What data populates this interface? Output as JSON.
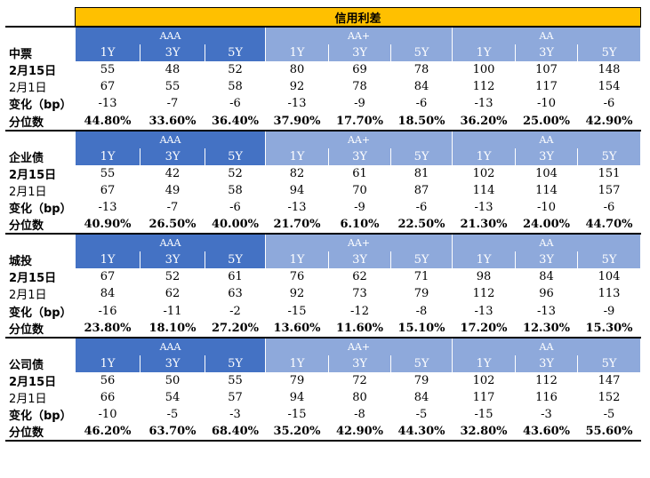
{
  "title": "信用利差",
  "ratings": [
    "AAA",
    "AA+",
    "AA"
  ],
  "tenors": [
    "1Y",
    "3Y",
    "5Y"
  ],
  "sections": [
    {
      "category": "中票",
      "rows": [
        {
          "label": "2月15日",
          "bold": true,
          "values": [
            "55",
            "48",
            "52",
            "80",
            "69",
            "78",
            "100",
            "107",
            "148"
          ]
        },
        {
          "label": "2月1日",
          "bold": false,
          "values": [
            "67",
            "55",
            "58",
            "92",
            "78",
            "84",
            "112",
            "117",
            "154"
          ]
        },
        {
          "label": "变化（bp）",
          "bold": true,
          "values": [
            "-13",
            "-7",
            "-6",
            "-13",
            "-9",
            "-6",
            "-13",
            "-10",
            "-6"
          ]
        },
        {
          "label": "分位数",
          "bold": true,
          "values": [
            "44.80%",
            "33.60%",
            "36.40%",
            "37.90%",
            "17.70%",
            "18.50%",
            "36.20%",
            "25.00%",
            "42.90%"
          ]
        }
      ]
    },
    {
      "category": "企业债",
      "rows": [
        {
          "label": "2月15日",
          "bold": true,
          "values": [
            "55",
            "42",
            "52",
            "82",
            "61",
            "81",
            "102",
            "104",
            "151"
          ]
        },
        {
          "label": "2月1日",
          "bold": false,
          "values": [
            "67",
            "49",
            "58",
            "94",
            "70",
            "87",
            "114",
            "114",
            "157"
          ]
        },
        {
          "label": "变化（bp）",
          "bold": true,
          "values": [
            "-13",
            "-7",
            "-6",
            "-13",
            "-9",
            "-6",
            "-13",
            "-10",
            "-6"
          ]
        },
        {
          "label": "分位数",
          "bold": true,
          "values": [
            "40.90%",
            "26.50%",
            "40.00%",
            "21.70%",
            "6.10%",
            "22.50%",
            "21.30%",
            "24.00%",
            "44.70%"
          ]
        }
      ]
    },
    {
      "category": "城投",
      "rows": [
        {
          "label": "2月15日",
          "bold": true,
          "values": [
            "67",
            "52",
            "61",
            "76",
            "62",
            "71",
            "98",
            "84",
            "104"
          ]
        },
        {
          "label": "2月1日",
          "bold": false,
          "values": [
            "84",
            "62",
            "63",
            "92",
            "73",
            "79",
            "112",
            "96",
            "113"
          ]
        },
        {
          "label": "变化（bp）",
          "bold": true,
          "values": [
            "-16",
            "-11",
            "-2",
            "-15",
            "-12",
            "-8",
            "-13",
            "-13",
            "-9"
          ]
        },
        {
          "label": "分位数",
          "bold": true,
          "values": [
            "23.80%",
            "18.10%",
            "27.20%",
            "13.60%",
            "11.60%",
            "15.10%",
            "17.20%",
            "12.30%",
            "15.30%"
          ]
        }
      ]
    },
    {
      "category": "公司债",
      "rows": [
        {
          "label": "2月15日",
          "bold": true,
          "values": [
            "56",
            "50",
            "55",
            "79",
            "72",
            "79",
            "102",
            "112",
            "147"
          ]
        },
        {
          "label": "2月1日",
          "bold": false,
          "values": [
            "66",
            "54",
            "57",
            "94",
            "80",
            "84",
            "117",
            "116",
            "152"
          ]
        },
        {
          "label": "变化（bp）",
          "bold": true,
          "values": [
            "-10",
            "-5",
            "-3",
            "-15",
            "-8",
            "-5",
            "-15",
            "-3",
            "-5"
          ]
        },
        {
          "label": "分位数",
          "bold": true,
          "values": [
            "46.20%",
            "63.70%",
            "68.40%",
            "35.20%",
            "42.90%",
            "44.30%",
            "32.80%",
            "43.60%",
            "55.60%"
          ]
        }
      ]
    }
  ],
  "colors": {
    "title_bg": "#FFC000",
    "aaa_bg": "#4472C4",
    "aa_plus_bg": "#8EA9DB",
    "aa_bg": "#8EA9DB"
  }
}
